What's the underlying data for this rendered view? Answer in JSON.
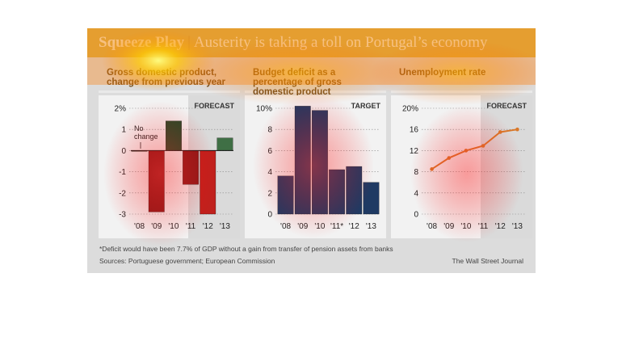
{
  "title": {
    "main": "Squeeze Play",
    "separator": "|",
    "sub": "Austerity is taking a toll on Portugal’s economy"
  },
  "footnote": "*Deficit would have been 7.7% of GDP without a gain from transfer of pension assets from banks",
  "sources": "Sources: Portuguese government; European Commission",
  "credit": "The Wall Street Journal",
  "colors": {
    "actual_gdp_negative": "#8b1a1a",
    "actual_gdp_positive": "#244b2a",
    "forecast_gdp_negative": "#c0211d",
    "forecast_gdp_positive": "#3f6f45",
    "deficit_bar": "#1f3a63",
    "unemployment_line": "#d9782a",
    "forecast_shading": "#dadada"
  },
  "chart_data": [
    {
      "type": "bar",
      "title": "Gross domestic product, change from previous year",
      "categories": [
        "'08",
        "'09",
        "'10",
        "'11",
        "'12",
        "'13"
      ],
      "values": [
        0,
        -2.9,
        1.4,
        -1.6,
        -3.0,
        0.6
      ],
      "ylim": [
        -3,
        2
      ],
      "yticks": [
        "2%",
        "1",
        "0",
        "-1",
        "-2",
        "-3"
      ],
      "yticks_values": [
        2,
        1,
        0,
        -1,
        -2,
        -3
      ],
      "shaded_label": "FORECAST",
      "shaded_from": "'12",
      "annotation": "No change",
      "grid": true
    },
    {
      "type": "bar",
      "title": "Budget deficit as a percentage of gross domestic product",
      "categories": [
        "'08",
        "'09",
        "'10",
        "'11*",
        "'12",
        "'13"
      ],
      "values": [
        3.6,
        10.2,
        9.8,
        4.2,
        4.5,
        3.0
      ],
      "ylim": [
        0,
        10
      ],
      "yticks": [
        "10%",
        "8",
        "6",
        "4",
        "2",
        "0"
      ],
      "yticks_values": [
        10,
        8,
        6,
        4,
        2,
        0
      ],
      "shaded_label": "TARGET",
      "grid": true
    },
    {
      "type": "line",
      "title": "Unemployment rate",
      "categories": [
        "'08",
        "'09",
        "'10",
        "'11",
        "'12",
        "'13"
      ],
      "values": [
        8.5,
        10.6,
        12.0,
        12.9,
        15.5,
        16.0
      ],
      "ylim": [
        0,
        20
      ],
      "yticks": [
        "20%",
        "16",
        "12",
        "8",
        "4",
        "0"
      ],
      "yticks_values": [
        20,
        16,
        12,
        8,
        4,
        0
      ],
      "shaded_label": "FORECAST",
      "shaded_from": "'12",
      "grid": true
    }
  ]
}
